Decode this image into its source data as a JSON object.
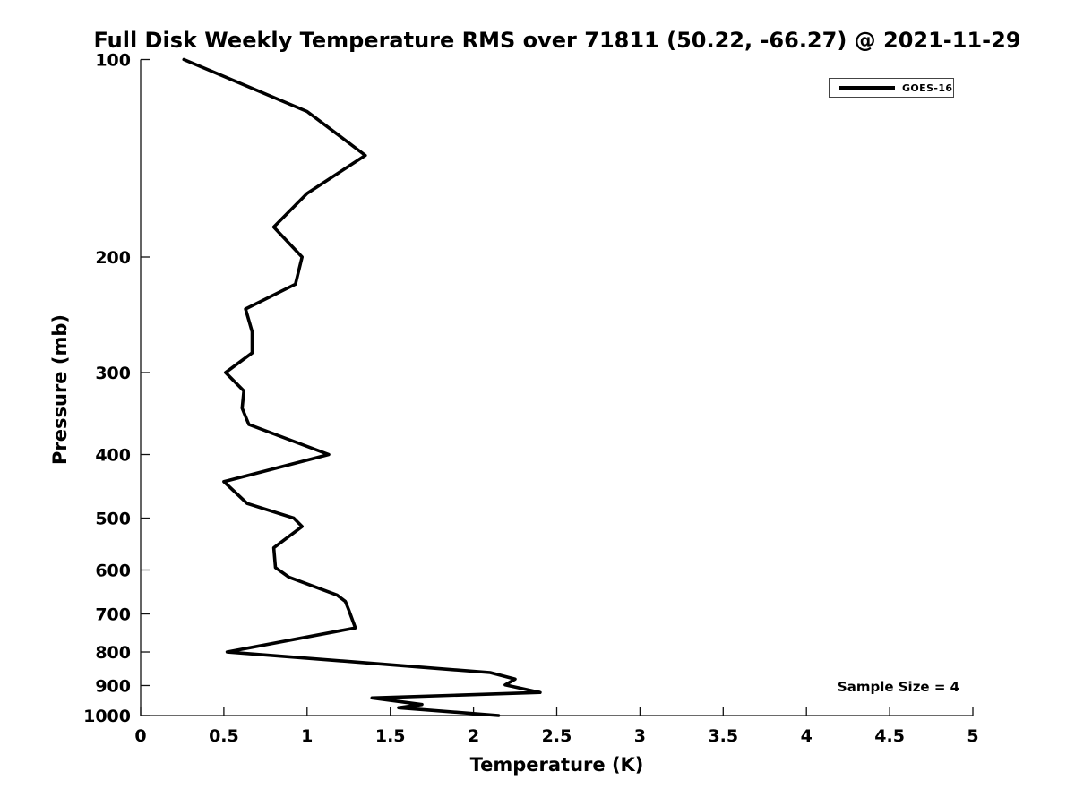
{
  "title": "Full Disk Weekly Temperature RMS over 71811 (50.22, -66.27) @ 2021-11-29",
  "x_axis_label": "Temperature (K)",
  "y_axis_label": "Pressure (mb)",
  "legend": {
    "series_label": "GOES-16"
  },
  "annotation_text": "Sample Size = 4",
  "colors": {
    "series": "#000000",
    "axis": "#111111",
    "text": "#000000",
    "background": "#ffffff"
  },
  "chart_data": {
    "type": "line",
    "title": "Full Disk Weekly Temperature RMS over 71811 (50.22, -66.27) @ 2021-11-29",
    "xlabel": "Temperature (K)",
    "ylabel": "Pressure (mb)",
    "xlim": [
      0,
      5
    ],
    "ylim": [
      100,
      1000
    ],
    "x_ticks": [
      0,
      0.5,
      1,
      1.5,
      2,
      2.5,
      3,
      3.5,
      4,
      4.5,
      5
    ],
    "y_ticks": [
      100,
      200,
      300,
      400,
      500,
      600,
      700,
      800,
      900,
      1000
    ],
    "y_scale": "log",
    "y_direction": "reversed",
    "grid": false,
    "legend_position": "top-right",
    "point_format": "[pressure_mb, rms_K]",
    "series": [
      {
        "name": "GOES-16",
        "color": "#000000",
        "line_width": 3.6,
        "points": [
          [
            100,
            0.26
          ],
          [
            120,
            1.0
          ],
          [
            140,
            1.35
          ],
          [
            160,
            1.0
          ],
          [
            180,
            0.8
          ],
          [
            200,
            0.97
          ],
          [
            220,
            0.93
          ],
          [
            240,
            0.63
          ],
          [
            260,
            0.67
          ],
          [
            280,
            0.67
          ],
          [
            300,
            0.51
          ],
          [
            320,
            0.62
          ],
          [
            340,
            0.61
          ],
          [
            360,
            0.65
          ],
          [
            400,
            1.13
          ],
          [
            440,
            0.5
          ],
          [
            475,
            0.64
          ],
          [
            500,
            0.92
          ],
          [
            515,
            0.97
          ],
          [
            555,
            0.8
          ],
          [
            595,
            0.81
          ],
          [
            615,
            0.89
          ],
          [
            655,
            1.18
          ],
          [
            670,
            1.23
          ],
          [
            690,
            1.25
          ],
          [
            735,
            1.29
          ],
          [
            800,
            0.52
          ],
          [
            860,
            2.1
          ],
          [
            880,
            2.25
          ],
          [
            898,
            2.19
          ],
          [
            922,
            2.4
          ],
          [
            940,
            1.39
          ],
          [
            962,
            1.69
          ],
          [
            973,
            1.55
          ],
          [
            1000,
            2.15
          ]
        ]
      }
    ],
    "annotations": [
      {
        "text": "Sample Size = 4",
        "position": "bottom-right"
      }
    ]
  }
}
